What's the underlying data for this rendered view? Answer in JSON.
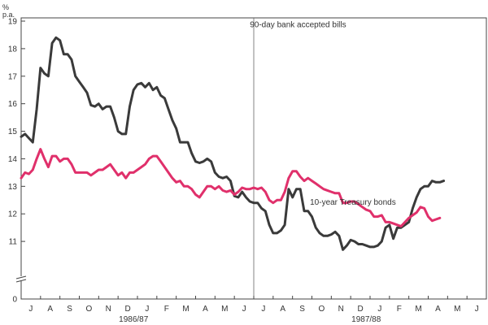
{
  "chart_data": {
    "type": "line",
    "y_unit_top": "%",
    "y_unit_bottom": "p.a.",
    "ylim": [
      10,
      19
    ],
    "y_break": "axis broken between 0 and 10",
    "y_ticks": [
      11,
      12,
      13,
      14,
      15,
      16,
      17,
      18,
      19
    ],
    "y_zero_label": "0",
    "xlim": [
      0,
      24
    ],
    "x_tick_labels": [
      "J",
      "A",
      "S",
      "O",
      "N",
      "D",
      "J",
      "F",
      "M",
      "A",
      "M",
      "J",
      "J",
      "A",
      "S",
      "O",
      "N",
      "D",
      "J",
      "F",
      "M",
      "A",
      "M",
      "J"
    ],
    "period_labels": [
      {
        "label": "1986/87",
        "x": 5.8
      },
      {
        "label": "1987/88",
        "x": 17.8
      }
    ],
    "fiscal_divider_x": 12,
    "grid": false,
    "legend": "inline labels",
    "series": [
      {
        "name": "90-day bank accepted bills",
        "color": "#3a3a3a",
        "label_pos": [
          11.8,
          18.9
        ],
        "points": [
          [
            0.0,
            14.8
          ],
          [
            0.2,
            14.9
          ],
          [
            0.4,
            14.75
          ],
          [
            0.6,
            14.6
          ],
          [
            0.8,
            15.8
          ],
          [
            1.0,
            17.3
          ],
          [
            1.2,
            17.1
          ],
          [
            1.4,
            17.0
          ],
          [
            1.6,
            18.2
          ],
          [
            1.8,
            18.4
          ],
          [
            2.0,
            18.3
          ],
          [
            2.2,
            17.8
          ],
          [
            2.4,
            17.8
          ],
          [
            2.6,
            17.6
          ],
          [
            2.8,
            17.0
          ],
          [
            3.0,
            16.8
          ],
          [
            3.2,
            16.6
          ],
          [
            3.4,
            16.4
          ],
          [
            3.6,
            15.95
          ],
          [
            3.8,
            15.9
          ],
          [
            4.0,
            16.0
          ],
          [
            4.2,
            15.8
          ],
          [
            4.4,
            15.9
          ],
          [
            4.6,
            15.9
          ],
          [
            4.8,
            15.5
          ],
          [
            5.0,
            15.0
          ],
          [
            5.2,
            14.9
          ],
          [
            5.4,
            14.9
          ],
          [
            5.6,
            15.9
          ],
          [
            5.8,
            16.5
          ],
          [
            6.0,
            16.7
          ],
          [
            6.2,
            16.75
          ],
          [
            6.4,
            16.6
          ],
          [
            6.6,
            16.75
          ],
          [
            6.8,
            16.5
          ],
          [
            7.0,
            16.6
          ],
          [
            7.2,
            16.3
          ],
          [
            7.4,
            16.2
          ],
          [
            7.6,
            15.8
          ],
          [
            7.8,
            15.4
          ],
          [
            8.0,
            15.1
          ],
          [
            8.2,
            14.6
          ],
          [
            8.4,
            14.6
          ],
          [
            8.6,
            14.6
          ],
          [
            8.8,
            14.2
          ],
          [
            9.0,
            13.9
          ],
          [
            9.2,
            13.85
          ],
          [
            9.4,
            13.9
          ],
          [
            9.6,
            14.0
          ],
          [
            9.8,
            13.9
          ],
          [
            10.0,
            13.5
          ],
          [
            10.2,
            13.35
          ],
          [
            10.4,
            13.3
          ],
          [
            10.6,
            13.35
          ],
          [
            10.8,
            13.2
          ],
          [
            11.0,
            12.65
          ],
          [
            11.2,
            12.6
          ],
          [
            11.4,
            12.8
          ],
          [
            11.6,
            12.6
          ],
          [
            11.8,
            12.45
          ],
          [
            12.0,
            12.4
          ],
          [
            12.2,
            12.4
          ],
          [
            12.4,
            12.2
          ],
          [
            12.6,
            12.1
          ],
          [
            12.8,
            11.6
          ],
          [
            13.0,
            11.3
          ],
          [
            13.2,
            11.3
          ],
          [
            13.4,
            11.4
          ],
          [
            13.6,
            11.6
          ],
          [
            13.8,
            12.9
          ],
          [
            14.0,
            12.6
          ],
          [
            14.2,
            12.9
          ],
          [
            14.4,
            12.9
          ],
          [
            14.6,
            12.1
          ],
          [
            14.8,
            12.1
          ],
          [
            15.0,
            11.9
          ],
          [
            15.2,
            11.5
          ],
          [
            15.4,
            11.3
          ],
          [
            15.6,
            11.2
          ],
          [
            15.8,
            11.2
          ],
          [
            16.0,
            11.25
          ],
          [
            16.2,
            11.35
          ],
          [
            16.4,
            11.2
          ],
          [
            16.6,
            10.7
          ],
          [
            16.8,
            10.85
          ],
          [
            17.0,
            11.05
          ],
          [
            17.2,
            11.0
          ],
          [
            17.4,
            10.9
          ],
          [
            17.6,
            10.9
          ],
          [
            17.8,
            10.85
          ],
          [
            18.0,
            10.8
          ],
          [
            18.2,
            10.8
          ],
          [
            18.4,
            10.85
          ],
          [
            18.6,
            11.0
          ],
          [
            18.8,
            11.5
          ],
          [
            19.0,
            11.6
          ],
          [
            19.2,
            11.1
          ],
          [
            19.4,
            11.5
          ],
          [
            19.6,
            11.5
          ],
          [
            19.8,
            11.6
          ],
          [
            20.0,
            11.7
          ],
          [
            20.2,
            12.2
          ],
          [
            20.4,
            12.6
          ],
          [
            20.6,
            12.9
          ],
          [
            20.8,
            13.0
          ],
          [
            21.0,
            13.0
          ],
          [
            21.2,
            13.2
          ],
          [
            21.4,
            13.15
          ],
          [
            21.6,
            13.15
          ],
          [
            21.8,
            13.2
          ]
        ]
      },
      {
        "name": "10-year Treasury bonds",
        "color": "#e0306b",
        "label_pos": [
          14.9,
          12.45
        ],
        "points": [
          [
            0.0,
            13.3
          ],
          [
            0.2,
            13.5
          ],
          [
            0.4,
            13.45
          ],
          [
            0.6,
            13.6
          ],
          [
            0.8,
            14.0
          ],
          [
            1.0,
            14.35
          ],
          [
            1.2,
            14.0
          ],
          [
            1.4,
            13.7
          ],
          [
            1.6,
            14.1
          ],
          [
            1.8,
            14.1
          ],
          [
            2.0,
            13.9
          ],
          [
            2.2,
            14.0
          ],
          [
            2.4,
            14.0
          ],
          [
            2.6,
            13.8
          ],
          [
            2.8,
            13.5
          ],
          [
            3.0,
            13.5
          ],
          [
            3.2,
            13.5
          ],
          [
            3.4,
            13.5
          ],
          [
            3.6,
            13.4
          ],
          [
            3.8,
            13.5
          ],
          [
            4.0,
            13.6
          ],
          [
            4.2,
            13.6
          ],
          [
            4.4,
            13.7
          ],
          [
            4.6,
            13.8
          ],
          [
            4.8,
            13.6
          ],
          [
            5.0,
            13.4
          ],
          [
            5.2,
            13.5
          ],
          [
            5.4,
            13.3
          ],
          [
            5.6,
            13.5
          ],
          [
            5.8,
            13.5
          ],
          [
            6.0,
            13.6
          ],
          [
            6.2,
            13.7
          ],
          [
            6.4,
            13.8
          ],
          [
            6.6,
            14.0
          ],
          [
            6.8,
            14.1
          ],
          [
            7.0,
            14.1
          ],
          [
            7.2,
            13.9
          ],
          [
            7.4,
            13.7
          ],
          [
            7.6,
            13.5
          ],
          [
            7.8,
            13.3
          ],
          [
            8.0,
            13.15
          ],
          [
            8.2,
            13.2
          ],
          [
            8.4,
            13.0
          ],
          [
            8.6,
            13.0
          ],
          [
            8.8,
            12.9
          ],
          [
            9.0,
            12.7
          ],
          [
            9.2,
            12.6
          ],
          [
            9.4,
            12.8
          ],
          [
            9.6,
            13.0
          ],
          [
            9.8,
            13.0
          ],
          [
            10.0,
            12.9
          ],
          [
            10.2,
            13.0
          ],
          [
            10.4,
            12.85
          ],
          [
            10.6,
            12.8
          ],
          [
            10.8,
            12.85
          ],
          [
            11.0,
            12.7
          ],
          [
            11.2,
            12.8
          ],
          [
            11.4,
            12.95
          ],
          [
            11.6,
            12.9
          ],
          [
            11.8,
            12.9
          ],
          [
            12.0,
            12.95
          ],
          [
            12.2,
            12.9
          ],
          [
            12.4,
            12.95
          ],
          [
            12.6,
            12.8
          ],
          [
            12.8,
            12.5
          ],
          [
            13.0,
            12.4
          ],
          [
            13.2,
            12.5
          ],
          [
            13.4,
            12.5
          ],
          [
            13.6,
            12.8
          ],
          [
            13.8,
            13.3
          ],
          [
            14.0,
            13.55
          ],
          [
            14.2,
            13.55
          ],
          [
            14.4,
            13.35
          ],
          [
            14.6,
            13.2
          ],
          [
            14.8,
            13.3
          ],
          [
            15.0,
            13.2
          ],
          [
            15.2,
            13.1
          ],
          [
            15.4,
            13.0
          ],
          [
            15.6,
            12.9
          ],
          [
            15.8,
            12.85
          ],
          [
            16.0,
            12.8
          ],
          [
            16.2,
            12.75
          ],
          [
            16.4,
            12.75
          ],
          [
            16.6,
            12.4
          ],
          [
            16.8,
            12.4
          ],
          [
            17.0,
            12.45
          ],
          [
            17.2,
            12.45
          ],
          [
            17.4,
            12.35
          ],
          [
            17.6,
            12.25
          ],
          [
            17.8,
            12.15
          ],
          [
            18.0,
            12.1
          ],
          [
            18.2,
            11.9
          ],
          [
            18.4,
            11.9
          ],
          [
            18.6,
            11.95
          ],
          [
            18.8,
            11.7
          ],
          [
            19.0,
            11.7
          ],
          [
            19.2,
            11.65
          ],
          [
            19.4,
            11.6
          ],
          [
            19.6,
            11.55
          ],
          [
            19.8,
            11.7
          ],
          [
            20.0,
            11.85
          ],
          [
            20.2,
            11.95
          ],
          [
            20.4,
            12.05
          ],
          [
            20.6,
            12.25
          ],
          [
            20.8,
            12.2
          ],
          [
            21.0,
            11.9
          ],
          [
            21.2,
            11.75
          ],
          [
            21.4,
            11.8
          ],
          [
            21.6,
            11.85
          ]
        ]
      }
    ]
  }
}
